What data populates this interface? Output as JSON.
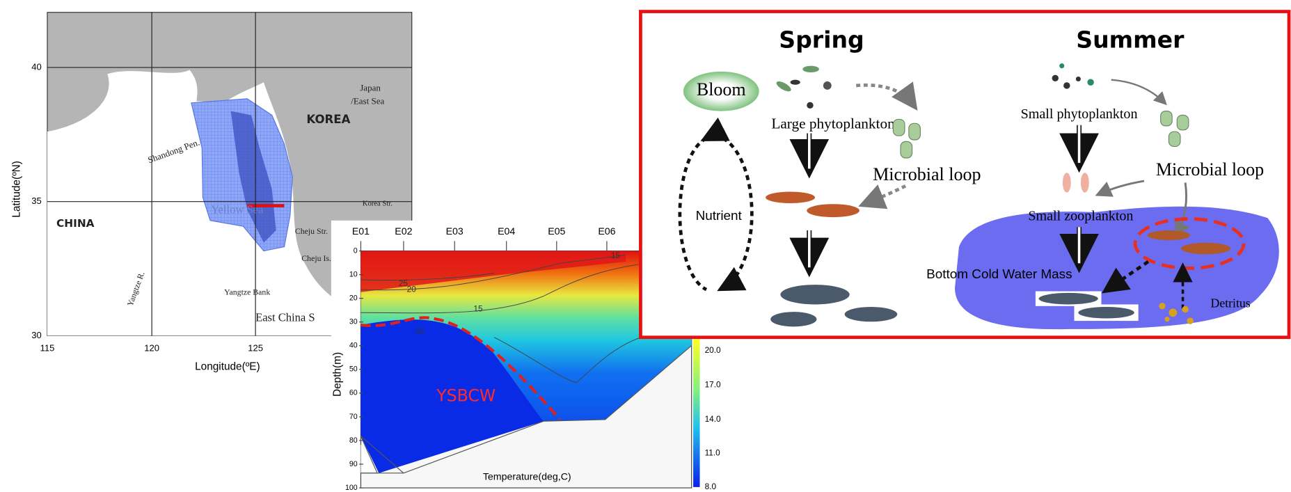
{
  "map": {
    "y_axis_label": "Latitude(ºN)",
    "x_axis_label": "Longitude(ºE)",
    "lat_ticks": [
      "40",
      "35",
      "30"
    ],
    "lon_ticks": [
      "115",
      "120",
      "125"
    ],
    "places": {
      "japan": "Japan",
      "east_sea": "/East Sea",
      "korea": "KOREA",
      "china": "CHINA",
      "shandong": "Shandong Pen.",
      "yellow_sea": "Yellow Sea",
      "korea_strait": "Korea Str.",
      "cheju_strait": "Cheju Str.",
      "cheju_island": "Cheju Is.",
      "yangtze_bank": "Yangtze Bank",
      "east_china_sea": "East China S",
      "yangtze_river": "Yangtze R."
    }
  },
  "section": {
    "stations": [
      "E01",
      "E02",
      "E03",
      "E04",
      "E05",
      "E06"
    ],
    "depth_ticks": [
      "0",
      "10",
      "20",
      "30",
      "40",
      "50",
      "60",
      "70",
      "80",
      "90",
      "100"
    ],
    "y_axis_label": "Depth(m)",
    "x_axis_label": "Temperature(deg,C)",
    "colorbar_ticks": [
      "20.0",
      "17.0",
      "14.0",
      "11.0",
      "8.0"
    ],
    "contour_labels": [
      "25",
      "20",
      "15",
      "10",
      "15"
    ],
    "water_mass": "YSBCW"
  },
  "food_web": {
    "spring": {
      "title": "Spring",
      "bloom": "Bloom",
      "large_phytoplankton": "Large phytoplankton",
      "microbial_loop": "Microbial loop",
      "nutrient": "Nutrient"
    },
    "summer": {
      "title": "Summer",
      "small_phytoplankton": "Small phytoplankton",
      "microbial_loop": "Microbial loop",
      "small_zooplankton": "Small zooplankton",
      "bottom_cold_water": "Bottom Cold Water Mass",
      "detritus": "Detritus"
    }
  }
}
